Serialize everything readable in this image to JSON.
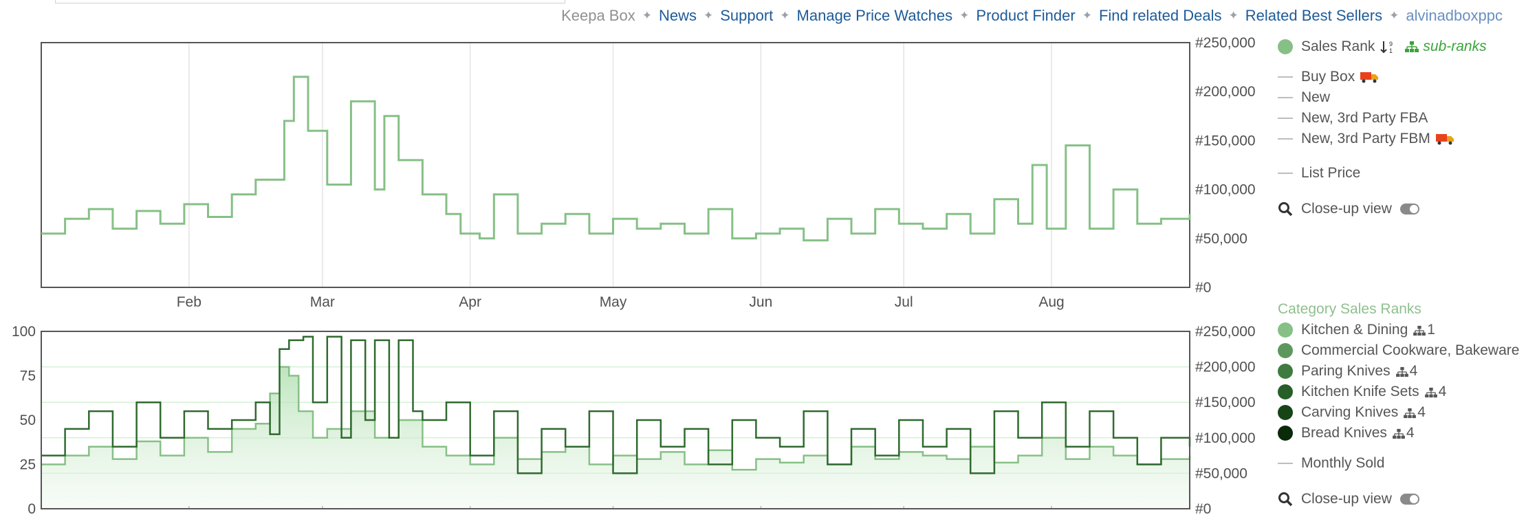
{
  "nav": {
    "items": [
      {
        "label": "Keepa Box",
        "style": "muted"
      },
      {
        "label": "News",
        "style": "link"
      },
      {
        "label": "Support",
        "style": "link"
      },
      {
        "label": "Manage Price Watches",
        "style": "link"
      },
      {
        "label": "Product Finder",
        "style": "link"
      },
      {
        "label": "Find related Deals",
        "style": "link"
      },
      {
        "label": "Related Best Sellers",
        "style": "link"
      },
      {
        "label": "alvinadboxppc",
        "style": "user"
      }
    ],
    "separator_icon": "four-point-star-icon"
  },
  "legend_top": {
    "sales_rank": "Sales Rank",
    "sort_icon": "sort-numeric-icon",
    "subranks": "sub-ranks",
    "buy_box": "Buy Box",
    "new": "New",
    "new_fba": "New, 3rd Party FBA",
    "new_fbm": "New, 3rd Party FBM",
    "list_price": "List Price",
    "closeup": "Close-up view"
  },
  "legend_bottom": {
    "title": "Category Sales Ranks",
    "categories": [
      {
        "label": "Kitchen & Dining",
        "count": "1",
        "color": "#86c086"
      },
      {
        "label": "Commercial Cookware, Bakeware",
        "count": "",
        "color": "#5e975e"
      },
      {
        "label": "Paring Knives",
        "count": "4",
        "color": "#3f7a3f"
      },
      {
        "label": "Kitchen Knife Sets",
        "count": "4",
        "color": "#285e28"
      },
      {
        "label": "Carving Knives",
        "count": "4",
        "color": "#164416"
      },
      {
        "label": "Bread Knives",
        "count": "4",
        "color": "#0a2a0a"
      }
    ],
    "monthly_sold": "Monthly Sold",
    "closeup": "Close-up view"
  },
  "colors": {
    "sales_rank": "#86c086",
    "sub_rank": "#2f6a2f",
    "nav_link": "#1d5b99"
  },
  "chart_data": [
    {
      "type": "line",
      "title": "",
      "y_ticks": [
        "#0",
        "#50,000",
        "#100,000",
        "#150,000",
        "#200,000",
        "#250,000"
      ],
      "ylim": [
        0,
        250000
      ],
      "x_ticks": [
        "Feb",
        "Mar",
        "Apr",
        "May",
        "Jun",
        "Jul",
        "Aug"
      ],
      "x_tick_positions_day": [
        31,
        59,
        90,
        120,
        151,
        181,
        212
      ],
      "xlim_day": [
        0,
        241
      ],
      "grid": "vertical",
      "series": [
        {
          "name": "Sales Rank",
          "x": [
            0,
            5,
            10,
            15,
            20,
            25,
            30,
            35,
            40,
            45,
            50,
            51,
            53,
            56,
            60,
            65,
            70,
            72,
            75,
            80,
            85,
            88,
            92,
            95,
            100,
            105,
            110,
            115,
            120,
            125,
            130,
            135,
            140,
            145,
            150,
            155,
            160,
            165,
            170,
            175,
            180,
            185,
            190,
            195,
            200,
            205,
            208,
            211,
            215,
            220,
            225,
            230,
            235,
            241
          ],
          "y": [
            55000,
            70000,
            80000,
            60000,
            78000,
            65000,
            85000,
            72000,
            95000,
            110000,
            110000,
            170000,
            215000,
            160000,
            105000,
            190000,
            100000,
            175000,
            130000,
            95000,
            75000,
            55000,
            50000,
            95000,
            55000,
            65000,
            75000,
            55000,
            70000,
            60000,
            65000,
            55000,
            80000,
            50000,
            55000,
            60000,
            48000,
            70000,
            55000,
            80000,
            65000,
            60000,
            75000,
            55000,
            90000,
            65000,
            125000,
            60000,
            145000,
            60000,
            100000,
            65000,
            70000,
            75000
          ]
        }
      ]
    },
    {
      "type": "line",
      "title": "",
      "y_ticks_left": [
        "0",
        "25",
        "50",
        "75",
        "100"
      ],
      "ylim_left": [
        0,
        100
      ],
      "y_ticks_right": [
        "#0",
        "#50,000",
        "#100,000",
        "#150,000",
        "#200,000",
        "#250,000"
      ],
      "ylim_right": [
        0,
        250000
      ],
      "xlim_day": [
        0,
        241
      ],
      "series": [
        {
          "name": "Kitchen & Dining",
          "x": [
            0,
            5,
            10,
            15,
            20,
            25,
            30,
            35,
            40,
            45,
            48,
            50,
            52,
            54,
            57,
            60,
            65,
            70,
            75,
            80,
            85,
            90,
            95,
            100,
            105,
            110,
            115,
            120,
            125,
            130,
            135,
            140,
            145,
            150,
            155,
            160,
            165,
            170,
            175,
            180,
            185,
            190,
            195,
            200,
            205,
            210,
            215,
            220,
            225,
            230,
            235,
            241
          ],
          "y": [
            25,
            30,
            35,
            28,
            38,
            30,
            40,
            32,
            45,
            48,
            65,
            80,
            75,
            55,
            40,
            45,
            55,
            40,
            50,
            35,
            30,
            25,
            40,
            28,
            32,
            35,
            25,
            30,
            28,
            32,
            25,
            33,
            22,
            28,
            26,
            30,
            25,
            35,
            28,
            32,
            30,
            28,
            35,
            26,
            30,
            40,
            28,
            35,
            30,
            25,
            28,
            30
          ]
        },
        {
          "name": "Commercial Cookware, Bakeware",
          "x": [
            0,
            5,
            10,
            15,
            20,
            25,
            30,
            35,
            40,
            45,
            48,
            50,
            52,
            55,
            57,
            60,
            63,
            65,
            68,
            70,
            73,
            75,
            78,
            80,
            85,
            90,
            95,
            100,
            105,
            110,
            115,
            120,
            125,
            130,
            135,
            140,
            145,
            150,
            155,
            160,
            165,
            170,
            175,
            180,
            185,
            190,
            195,
            200,
            205,
            210,
            215,
            220,
            225,
            230,
            235,
            241
          ],
          "y": [
            30,
            45,
            55,
            35,
            60,
            40,
            55,
            45,
            50,
            60,
            42,
            90,
            95,
            97,
            60,
            97,
            40,
            95,
            50,
            95,
            40,
            95,
            55,
            50,
            60,
            30,
            55,
            20,
            45,
            35,
            55,
            20,
            50,
            35,
            45,
            25,
            50,
            40,
            35,
            55,
            25,
            45,
            30,
            50,
            35,
            45,
            20,
            55,
            40,
            60,
            35,
            55,
            40,
            25,
            40,
            35
          ]
        }
      ]
    }
  ]
}
